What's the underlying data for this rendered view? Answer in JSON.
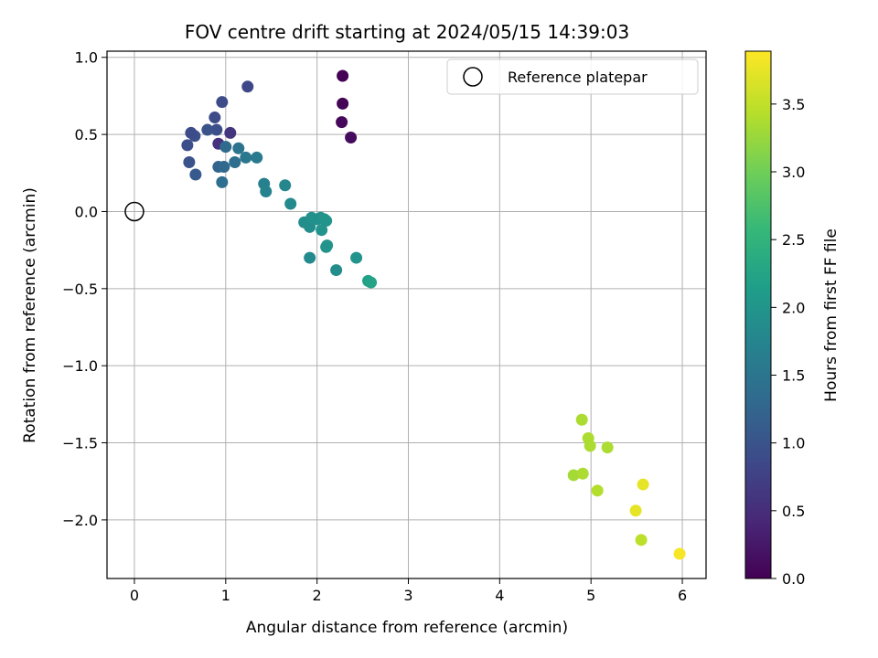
{
  "chart_data": {
    "type": "scatter",
    "title": "FOV centre drift starting at 2024/05/15 14:39:03",
    "xlabel": "Angular distance from reference (arcmin)",
    "ylabel": "Rotation from reference (arcmin)",
    "xlim": [
      -0.3,
      6.26
    ],
    "ylim": [
      -2.38,
      1.04
    ],
    "xticks": [
      0,
      1,
      2,
      3,
      4,
      5,
      6
    ],
    "yticks": [
      -2.0,
      -1.5,
      -1.0,
      -0.5,
      0.0,
      0.5,
      1.0
    ],
    "ytick_labels": [
      "−2.0",
      "−1.5",
      "−1.0",
      "−0.5",
      "0.0",
      "0.5",
      "1.0"
    ],
    "grid": true,
    "legend": {
      "placement": "top-right",
      "entries": [
        "Reference platepar"
      ]
    },
    "reference_point": {
      "x": 0,
      "y": 0,
      "label": "Reference platepar"
    },
    "colorbar": {
      "label": "Hours from first FF file",
      "colormap": "viridis",
      "range": [
        0,
        3.89
      ],
      "ticks": [
        0.0,
        0.5,
        1.0,
        1.5,
        2.0,
        2.5,
        3.0,
        3.5
      ],
      "tick_labels": [
        "0.0",
        "0.5",
        "1.0",
        "1.5",
        "2.0",
        "2.5",
        "3.0",
        "3.5"
      ]
    },
    "points": [
      {
        "x": 2.28,
        "y": 0.88,
        "c": 0.0
      },
      {
        "x": 2.28,
        "y": 0.7,
        "c": 0.04
      },
      {
        "x": 2.27,
        "y": 0.58,
        "c": 0.08
      },
      {
        "x": 2.37,
        "y": 0.48,
        "c": 0.12
      },
      {
        "x": 0.92,
        "y": 0.44,
        "c": 0.55
      },
      {
        "x": 1.05,
        "y": 0.51,
        "c": 0.6
      },
      {
        "x": 0.96,
        "y": 0.71,
        "c": 0.9
      },
      {
        "x": 1.24,
        "y": 0.81,
        "c": 0.85
      },
      {
        "x": 0.88,
        "y": 0.61,
        "c": 0.9
      },
      {
        "x": 0.9,
        "y": 0.53,
        "c": 0.95
      },
      {
        "x": 0.8,
        "y": 0.53,
        "c": 1.0
      },
      {
        "x": 0.66,
        "y": 0.49,
        "c": 0.95
      },
      {
        "x": 0.62,
        "y": 0.51,
        "c": 0.9
      },
      {
        "x": 0.58,
        "y": 0.43,
        "c": 0.95
      },
      {
        "x": 0.6,
        "y": 0.32,
        "c": 1.0
      },
      {
        "x": 0.67,
        "y": 0.24,
        "c": 1.1
      },
      {
        "x": 0.92,
        "y": 0.29,
        "c": 1.25
      },
      {
        "x": 0.98,
        "y": 0.29,
        "c": 1.3
      },
      {
        "x": 0.96,
        "y": 0.19,
        "c": 1.4
      },
      {
        "x": 1.0,
        "y": 0.42,
        "c": 1.35
      },
      {
        "x": 1.1,
        "y": 0.32,
        "c": 1.4
      },
      {
        "x": 1.14,
        "y": 0.41,
        "c": 1.5
      },
      {
        "x": 1.22,
        "y": 0.35,
        "c": 1.55
      },
      {
        "x": 1.34,
        "y": 0.35,
        "c": 1.6
      },
      {
        "x": 1.42,
        "y": 0.18,
        "c": 1.7
      },
      {
        "x": 1.44,
        "y": 0.13,
        "c": 1.75
      },
      {
        "x": 1.65,
        "y": 0.17,
        "c": 1.8
      },
      {
        "x": 1.71,
        "y": 0.05,
        "c": 1.85
      },
      {
        "x": 1.86,
        "y": -0.07,
        "c": 1.9
      },
      {
        "x": 1.92,
        "y": -0.1,
        "c": 1.9
      },
      {
        "x": 1.94,
        "y": -0.04,
        "c": 1.95
      },
      {
        "x": 2.0,
        "y": -0.05,
        "c": 1.95
      },
      {
        "x": 2.04,
        "y": -0.04,
        "c": 1.95
      },
      {
        "x": 2.08,
        "y": -0.05,
        "c": 2.0
      },
      {
        "x": 2.05,
        "y": -0.12,
        "c": 2.0
      },
      {
        "x": 2.1,
        "y": -0.06,
        "c": 2.0
      },
      {
        "x": 2.1,
        "y": -0.23,
        "c": 2.0
      },
      {
        "x": 2.11,
        "y": -0.22,
        "c": 2.0
      },
      {
        "x": 1.92,
        "y": -0.3,
        "c": 1.85
      },
      {
        "x": 2.21,
        "y": -0.38,
        "c": 1.9
      },
      {
        "x": 2.43,
        "y": -0.3,
        "c": 2.0
      },
      {
        "x": 2.56,
        "y": -0.45,
        "c": 2.2
      },
      {
        "x": 2.59,
        "y": -0.46,
        "c": 2.25
      },
      {
        "x": 4.9,
        "y": -1.35,
        "c": 3.4
      },
      {
        "x": 4.97,
        "y": -1.47,
        "c": 3.4
      },
      {
        "x": 4.99,
        "y": -1.52,
        "c": 3.4
      },
      {
        "x": 5.18,
        "y": -1.53,
        "c": 3.4
      },
      {
        "x": 4.81,
        "y": -1.71,
        "c": 3.35
      },
      {
        "x": 4.91,
        "y": -1.7,
        "c": 3.4
      },
      {
        "x": 5.07,
        "y": -1.81,
        "c": 3.45
      },
      {
        "x": 5.49,
        "y": -1.94,
        "c": 3.75
      },
      {
        "x": 5.57,
        "y": -1.77,
        "c": 3.75
      },
      {
        "x": 5.55,
        "y": -2.13,
        "c": 3.5
      },
      {
        "x": 5.97,
        "y": -2.22,
        "c": 3.85
      }
    ]
  }
}
